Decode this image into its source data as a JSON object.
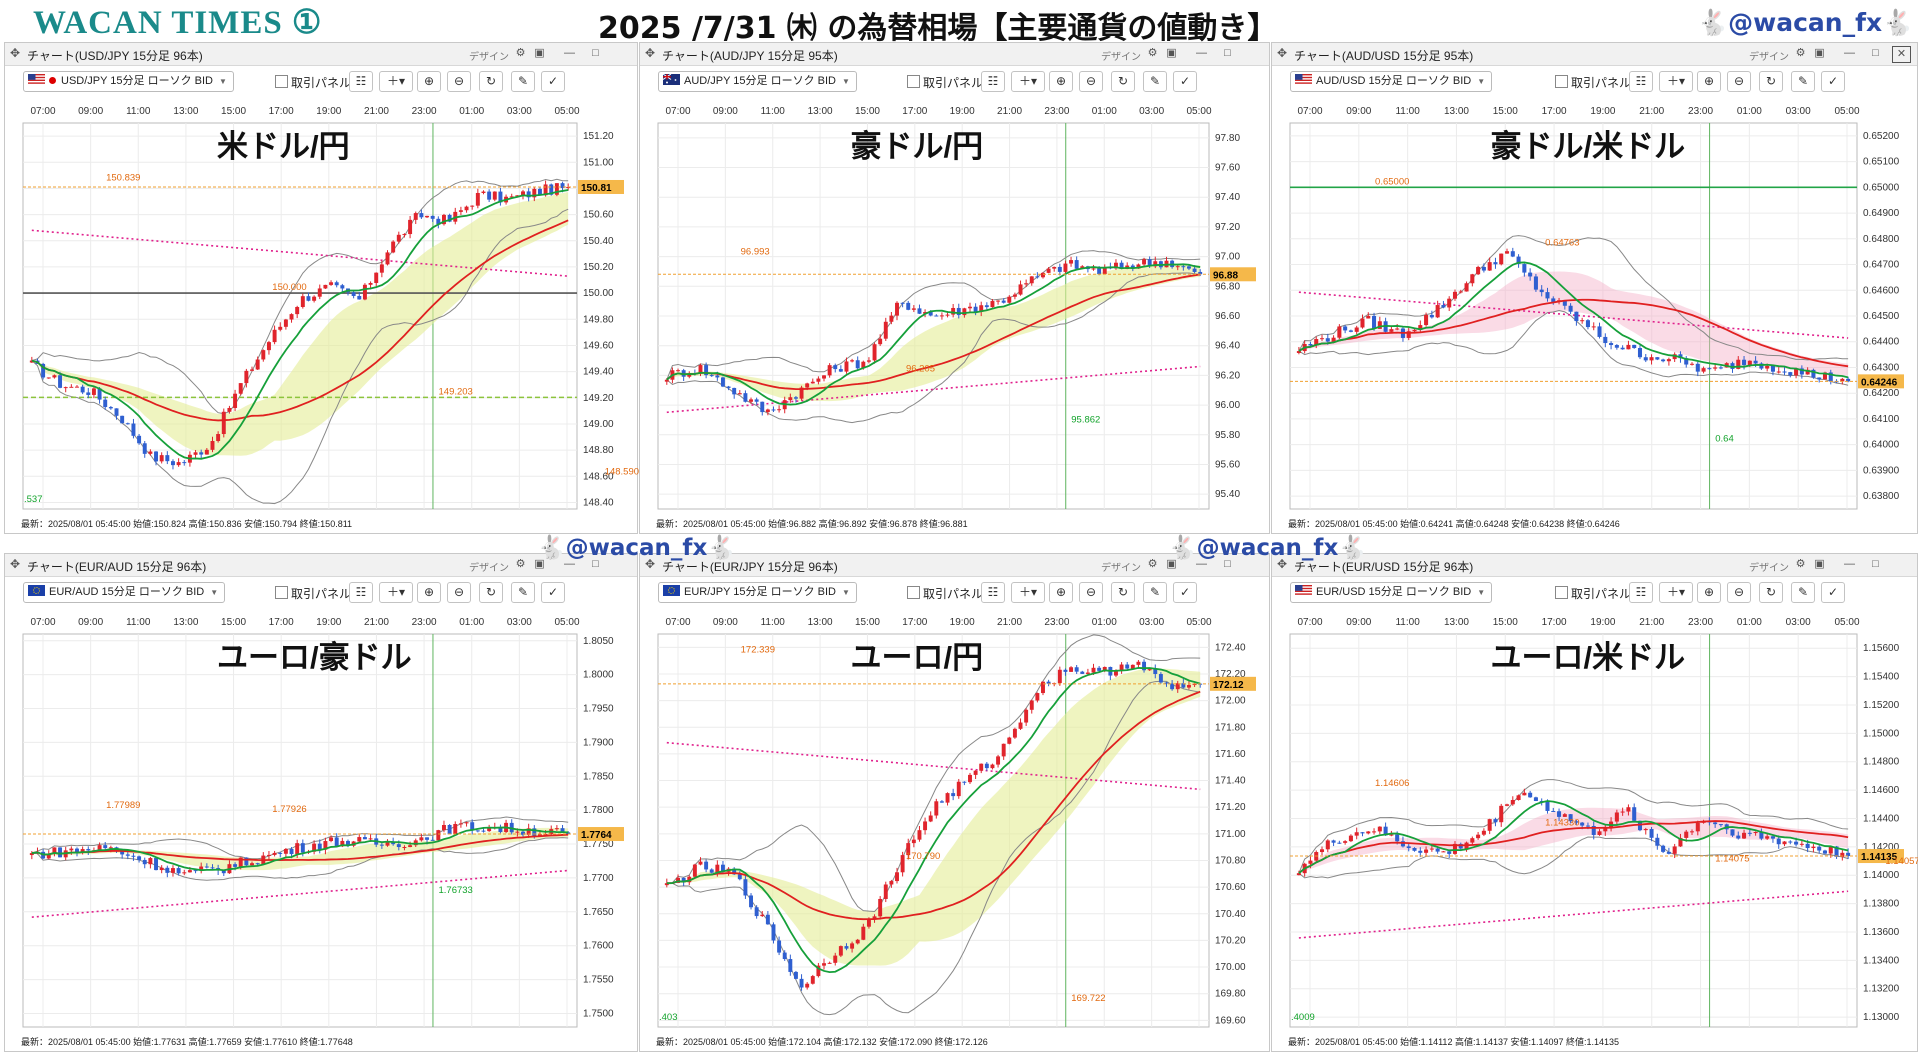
{
  "header": {
    "brand": "WACAN TIMES ①",
    "title": "2025 /7/31 ㈭ の為替相場【主要通貨の値動き】",
    "handle": "🐇@wacan_fx🐇"
  },
  "watermark": "🐇@wacan_fx🐇",
  "common": {
    "design_label": "デザイン",
    "trade_panel_label": "取引パネル",
    "time_labels": [
      "07:00",
      "09:00",
      "11:00",
      "13:00",
      "15:00",
      "17:00",
      "19:00",
      "21:00",
      "23:00",
      "01:00",
      "03:00",
      "05:00"
    ]
  },
  "panels": [
    {
      "window_title": "チャート(USD/JPY 15分足 96本)",
      "symbol": "USD/JPY 15分足 ローソク BID",
      "flag": "us-flag",
      "big_label": "米ドル/円",
      "footer": "最新：2025/08/01 05:45:00  始値:150.824  高値:150.836  安値:150.794  終値:150.811",
      "y_ticks": [
        "151.20",
        "151.00",
        "150.80",
        "150.60",
        "150.40",
        "150.20",
        "150.00",
        "149.80",
        "149.60",
        "149.40",
        "149.20",
        "149.00",
        "148.80",
        "148.60",
        "148.40"
      ],
      "last_price": "150.81",
      "annotations": [
        "150.839",
        "150.000",
        "149.203",
        "148.590",
        ".537"
      ]
    },
    {
      "window_title": "チャート(AUD/JPY 15分足 95本)",
      "symbol": "AUD/JPY 15分足 ローソク BID",
      "flag": "au-flag",
      "big_label": "豪ドル/円",
      "footer": "最新：2025/08/01 05:45:00  始値:96.882  高値:96.892  安値:96.878  終値:96.881",
      "y_ticks": [
        "97.80",
        "97.60",
        "97.40",
        "97.20",
        "97.00",
        "96.80",
        "96.60",
        "96.40",
        "96.20",
        "96.00",
        "95.80",
        "95.60",
        "95.40"
      ],
      "last_price": "96.88",
      "annotations": [
        "96.993",
        "96.205",
        "95.862"
      ]
    },
    {
      "window_title": "チャート(AUD/USD 15分足 95本)",
      "symbol": "AUD/USD 15分足 ローソク BID",
      "flag": "us-flag",
      "big_label": "豪ドル/米ドル",
      "footer": "最新：2025/08/01 05:45:00  始値:0.64241  高値:0.64248  安値:0.64238  終値:0.64246",
      "y_ticks": [
        "0.65200",
        "0.65100",
        "0.65000",
        "0.64900",
        "0.64800",
        "0.64700",
        "0.64600",
        "0.64500",
        "0.64400",
        "0.64300",
        "0.64200",
        "0.64100",
        "0.64000",
        "0.63900",
        "0.63800"
      ],
      "last_price": "0.64246",
      "annotations": [
        "0.65000",
        "0.64763",
        "0.64"
      ]
    },
    {
      "window_title": "チャート(EUR/AUD 15分足 96本)",
      "symbol": "EUR/AUD 15分足 ローソク BID",
      "flag": "eu-flag",
      "big_label": "ユーロ/豪ドル",
      "footer": "最新：2025/08/01 05:45:00  始値:1.77631  高値:1.77659  安値:1.77610  終値:1.77648",
      "y_ticks": [
        "1.8050",
        "1.8000",
        "1.7950",
        "1.7900",
        "1.7850",
        "1.7800",
        "1.7750",
        "1.7700",
        "1.7650",
        "1.7600",
        "1.7550",
        "1.7500"
      ],
      "last_price": "1.7764",
      "annotations": [
        "1.77989",
        "1.77926",
        "1.76733"
      ]
    },
    {
      "window_title": "チャート(EUR/JPY 15分足 96本)",
      "symbol": "EUR/JPY 15分足 ローソク BID",
      "flag": "eu-flag",
      "big_label": "ユーロ/円",
      "footer": "最新：2025/08/01 05:45:00  始値:172.104  高値:172.132  安値:172.090  終値:172.126",
      "y_ticks": [
        "172.40",
        "172.20",
        "172.00",
        "171.80",
        "171.60",
        "171.40",
        "171.20",
        "171.00",
        "170.80",
        "170.60",
        "170.40",
        "170.20",
        "170.00",
        "169.80",
        "169.60"
      ],
      "last_price": "172.12",
      "annotations": [
        "172.339",
        "170.790",
        "169.722",
        ".403"
      ]
    },
    {
      "window_title": "チャート(EUR/USD 15分足 96本)",
      "symbol": "EUR/USD 15分足 ローソク BID",
      "flag": "us-flag",
      "big_label": "ユーロ/米ドル",
      "footer": "最新：2025/08/01 05:45:00  始値:1.14112  高値:1.14137  安値:1.14097  終値:1.14135",
      "y_ticks": [
        "1.15600",
        "1.15400",
        "1.15200",
        "1.15000",
        "1.14800",
        "1.14600",
        "1.14400",
        "1.14200",
        "1.14000",
        "1.13800",
        "1.13600",
        "1.13400",
        "1.13200",
        "1.13000"
      ],
      "last_price": "1.14135",
      "annotations": [
        "1.14606",
        "1.14330",
        "1.14075",
        "1.14057",
        ".4009"
      ]
    }
  ],
  "chart_data": [
    {
      "type": "candlestick",
      "pair": "USD/JPY",
      "x_labels": [
        "07:00",
        "09:00",
        "11:00",
        "13:00",
        "15:00",
        "17:00",
        "19:00",
        "21:00",
        "23:00",
        "01:00",
        "03:00",
        "05:00"
      ],
      "ylim": [
        148.35,
        151.3
      ],
      "close_path": [
        149.45,
        149.3,
        149.25,
        149.05,
        148.75,
        148.7,
        148.85,
        149.3,
        149.65,
        149.95,
        150.05,
        149.95,
        150.35,
        150.6,
        150.55,
        150.75,
        150.72,
        150.78,
        150.81
      ],
      "levels": [
        150.0,
        149.203
      ],
      "last": 150.811
    },
    {
      "type": "candlestick",
      "pair": "AUD/JPY",
      "x_labels": [
        "07:00",
        "09:00",
        "11:00",
        "13:00",
        "15:00",
        "17:00",
        "19:00",
        "21:00",
        "23:00",
        "01:00",
        "03:00",
        "05:00"
      ],
      "ylim": [
        95.3,
        97.9
      ],
      "close_path": [
        96.2,
        96.25,
        96.1,
        95.95,
        96.1,
        96.25,
        96.3,
        96.7,
        96.6,
        96.65,
        96.7,
        96.85,
        96.95,
        96.9,
        96.95,
        96.97,
        96.88
      ],
      "last": 96.881
    },
    {
      "type": "candlestick",
      "pair": "AUD/USD",
      "x_labels": [
        "07:00",
        "09:00",
        "11:00",
        "13:00",
        "15:00",
        "17:00",
        "19:00",
        "21:00",
        "23:00",
        "01:00",
        "03:00",
        "05:00"
      ],
      "ylim": [
        0.6375,
        0.6525
      ],
      "close_path": [
        0.6437,
        0.6443,
        0.6448,
        0.6443,
        0.6452,
        0.6465,
        0.6475,
        0.646,
        0.645,
        0.644,
        0.6435,
        0.6433,
        0.6428,
        0.6433,
        0.643,
        0.6427,
        0.6425
      ],
      "levels": [
        0.65
      ],
      "last": 0.64246
    },
    {
      "type": "candlestick",
      "pair": "EUR/AUD",
      "x_labels": [
        "07:00",
        "09:00",
        "11:00",
        "13:00",
        "15:00",
        "17:00",
        "19:00",
        "21:00",
        "23:00",
        "01:00",
        "03:00",
        "05:00"
      ],
      "ylim": [
        1.748,
        1.806
      ],
      "close_path": [
        1.7735,
        1.774,
        1.7745,
        1.7725,
        1.7705,
        1.7715,
        1.773,
        1.7745,
        1.7755,
        1.775,
        1.7755,
        1.7775,
        1.7775,
        1.777,
        1.7765
      ],
      "last": 1.77648
    },
    {
      "type": "candlestick",
      "pair": "EUR/JPY",
      "x_labels": [
        "07:00",
        "09:00",
        "11:00",
        "13:00",
        "15:00",
        "17:00",
        "19:00",
        "21:00",
        "23:00",
        "01:00",
        "03:00",
        "05:00"
      ],
      "ylim": [
        169.55,
        172.5
      ],
      "close_path": [
        170.6,
        170.75,
        170.7,
        170.3,
        169.85,
        170.1,
        170.3,
        170.8,
        171.2,
        171.4,
        171.6,
        172.05,
        172.25,
        172.2,
        172.3,
        172.1,
        172.12
      ],
      "last": 172.126
    },
    {
      "type": "candlestick",
      "pair": "EUR/USD",
      "x_labels": [
        "07:00",
        "09:00",
        "11:00",
        "13:00",
        "15:00",
        "17:00",
        "19:00",
        "21:00",
        "23:00",
        "01:00",
        "03:00",
        "05:00"
      ],
      "ylim": [
        1.1293,
        1.157
      ],
      "close_path": [
        1.1405,
        1.1425,
        1.1433,
        1.142,
        1.1415,
        1.143,
        1.146,
        1.1445,
        1.143,
        1.1445,
        1.1415,
        1.144,
        1.143,
        1.1425,
        1.142,
        1.14135
      ],
      "last": 1.14135
    }
  ]
}
